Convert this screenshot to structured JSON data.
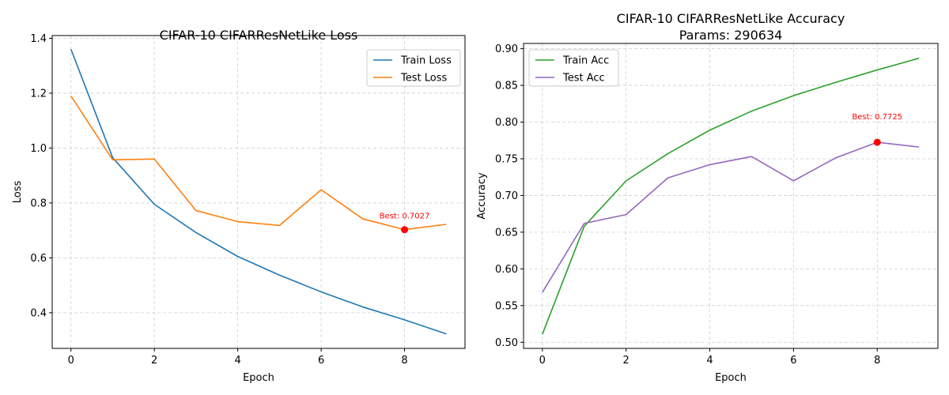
{
  "chart_data": [
    {
      "type": "line",
      "title": "CIFAR-10 CIFARResNetLike Loss",
      "subtitle": "",
      "xlabel": "Epoch",
      "ylabel": "Loss",
      "xlim": [
        -0.45,
        9.45
      ],
      "ylim": [
        0.27,
        1.41
      ],
      "xticks": [
        0,
        2,
        4,
        6,
        8
      ],
      "yticks": [
        0.4,
        0.6,
        0.8,
        1.0,
        1.2,
        1.4
      ],
      "ytick_labels": [
        "0.4",
        "0.6",
        "0.8",
        "1.0",
        "1.2",
        "1.4"
      ],
      "x": [
        0,
        1,
        2,
        3,
        4,
        5,
        6,
        7,
        8,
        9
      ],
      "grid": true,
      "legend": "upper-right",
      "series": [
        {
          "name": "Train Loss",
          "color": "#1f77b4",
          "values": [
            1.36,
            0.965,
            0.795,
            0.692,
            0.605,
            0.537,
            0.476,
            0.421,
            0.374,
            0.323
          ]
        },
        {
          "name": "Test Loss",
          "color": "#ff7f0e",
          "values": [
            1.19,
            0.957,
            0.96,
            0.772,
            0.732,
            0.718,
            0.848,
            0.742,
            0.7027,
            0.722
          ]
        }
      ],
      "best": {
        "x": 8,
        "y": 0.7027,
        "label": "Best: 0.7027",
        "color": "#ff0000"
      }
    },
    {
      "type": "line",
      "title": "CIFAR-10 CIFARResNetLike Accuracy",
      "subtitle": "Params: 290634",
      "xlabel": "Epoch",
      "ylabel": "Accuracy",
      "xlim": [
        -0.45,
        9.45
      ],
      "ylim": [
        0.4917,
        0.9071
      ],
      "xticks": [
        0,
        2,
        4,
        6,
        8
      ],
      "yticks": [
        0.5,
        0.55,
        0.6,
        0.65,
        0.7,
        0.75,
        0.8,
        0.85,
        0.9
      ],
      "ytick_labels": [
        "0.50",
        "0.55",
        "0.60",
        "0.65",
        "0.70",
        "0.75",
        "0.80",
        "0.85",
        "0.90"
      ],
      "x": [
        0,
        1,
        2,
        3,
        4,
        5,
        6,
        7,
        8,
        9
      ],
      "grid": true,
      "legend": "upper-left",
      "series": [
        {
          "name": "Train Acc",
          "color": "#2ca02c",
          "values": [
            0.511,
            0.658,
            0.72,
            0.757,
            0.789,
            0.815,
            0.836,
            0.854,
            0.871,
            0.887
          ]
        },
        {
          "name": "Test Acc",
          "color": "#9467bd",
          "values": [
            0.568,
            0.662,
            0.674,
            0.724,
            0.742,
            0.753,
            0.72,
            0.751,
            0.7725,
            0.766
          ]
        }
      ],
      "best": {
        "x": 8,
        "y": 0.7725,
        "label": "Best: 0.7725",
        "color": "#ff0000"
      }
    }
  ]
}
